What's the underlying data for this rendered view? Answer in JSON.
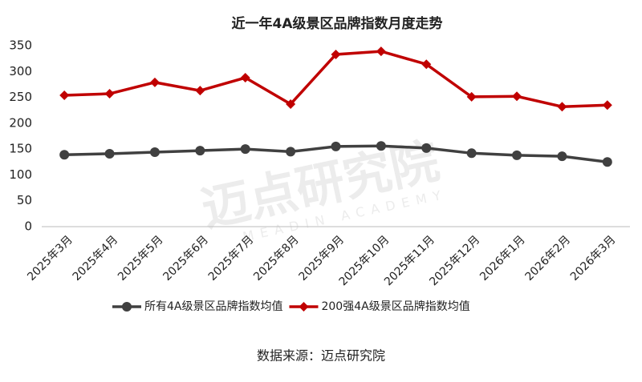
{
  "chart_data": {
    "type": "line",
    "title": "近一年4A级景区品牌指数月度走势",
    "categories": [
      "2025年3月",
      "2025年4月",
      "2025年5月",
      "2025年6月",
      "2025年7月",
      "2025年8月",
      "2025年9月",
      "2025年10月",
      "2025年11月",
      "2025年12月",
      "2026年1月",
      "2026年2月",
      "2026年3月"
    ],
    "series": [
      {
        "name": "所有4A级景区品牌指数均值",
        "color": "#404040",
        "values": [
          139,
          141,
          144,
          147,
          150,
          145,
          155,
          156,
          152,
          142,
          138,
          136,
          125
        ]
      },
      {
        "name": "200强4A级景区品牌指数均值",
        "color": "#c00000",
        "values": [
          254,
          257,
          279,
          263,
          288,
          237,
          333,
          339,
          314,
          251,
          252,
          232,
          235
        ]
      }
    ],
    "ylim": [
      0,
      350
    ],
    "yticks": [
      0,
      50,
      100,
      150,
      200,
      250,
      300,
      350
    ],
    "grid": false,
    "legend": "bottom",
    "watermark": "迈点研究院",
    "watermark_sub": "MEADIN ACADEMY",
    "source": "数据来源：迈点研究院"
  }
}
